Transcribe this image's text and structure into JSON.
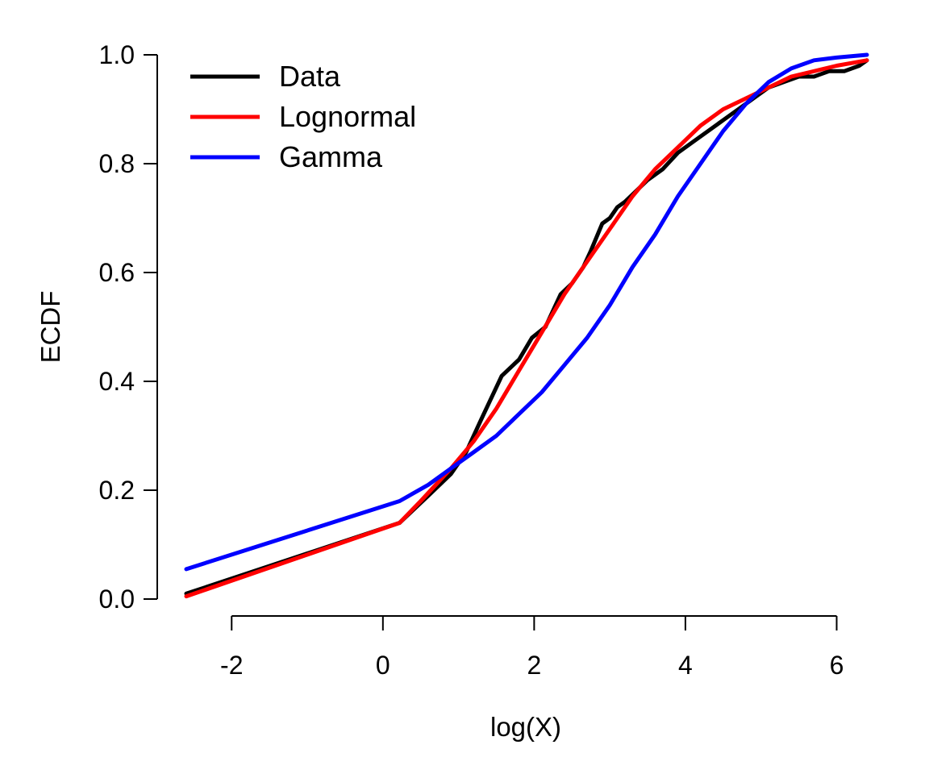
{
  "chart_data": {
    "type": "line",
    "title": "",
    "xlabel": "log(X)",
    "ylabel": "ECDF",
    "xlim": [
      -2.6,
      6.4
    ],
    "ylim": [
      0.0,
      1.0
    ],
    "x_ticks": [
      -2,
      0,
      2,
      4,
      6
    ],
    "x_tick_labels": [
      "-2",
      "0",
      "2",
      "4",
      "6"
    ],
    "y_ticks": [
      0.0,
      0.2,
      0.4,
      0.6,
      0.8,
      1.0
    ],
    "y_tick_labels": [
      "0.0",
      "0.2",
      "0.4",
      "0.6",
      "0.8",
      "1.0"
    ],
    "grid": false,
    "legend_position": "top-left",
    "series": [
      {
        "name": "Data",
        "color": "#000000",
        "x": [
          -2.6,
          0.22,
          0.6,
          0.9,
          1.1,
          1.3,
          1.57,
          1.8,
          1.97,
          2.15,
          2.35,
          2.5,
          2.65,
          2.75,
          2.9,
          3.0,
          3.1,
          3.2,
          3.35,
          3.5,
          3.7,
          3.9,
          4.1,
          4.3,
          4.5,
          4.7,
          4.9,
          5.1,
          5.3,
          5.5,
          5.7,
          5.9,
          6.1,
          6.3,
          6.4
        ],
        "y": [
          0.01,
          0.14,
          0.19,
          0.23,
          0.27,
          0.33,
          0.41,
          0.44,
          0.48,
          0.5,
          0.56,
          0.58,
          0.61,
          0.64,
          0.69,
          0.7,
          0.72,
          0.73,
          0.75,
          0.77,
          0.79,
          0.82,
          0.84,
          0.86,
          0.88,
          0.9,
          0.92,
          0.94,
          0.95,
          0.96,
          0.96,
          0.97,
          0.97,
          0.98,
          0.99
        ]
      },
      {
        "name": "Lognormal",
        "color": "#ff0000",
        "x": [
          -2.6,
          0.22,
          0.5,
          0.9,
          1.2,
          1.5,
          1.8,
          2.1,
          2.4,
          2.7,
          3.0,
          3.3,
          3.6,
          3.9,
          4.2,
          4.5,
          4.8,
          5.1,
          5.4,
          5.7,
          6.0,
          6.4
        ],
        "y": [
          0.005,
          0.14,
          0.18,
          0.24,
          0.29,
          0.35,
          0.42,
          0.49,
          0.56,
          0.62,
          0.68,
          0.74,
          0.79,
          0.83,
          0.87,
          0.9,
          0.92,
          0.94,
          0.96,
          0.97,
          0.98,
          0.99
        ]
      },
      {
        "name": "Gamma",
        "color": "#0000ff",
        "x": [
          -2.6,
          0.22,
          0.6,
          0.9,
          1.2,
          1.5,
          1.8,
          2.1,
          2.4,
          2.7,
          3.0,
          3.3,
          3.6,
          3.9,
          4.2,
          4.5,
          4.8,
          5.1,
          5.4,
          5.7,
          6.0,
          6.4
        ],
        "y": [
          0.055,
          0.18,
          0.21,
          0.24,
          0.27,
          0.3,
          0.34,
          0.38,
          0.43,
          0.48,
          0.54,
          0.61,
          0.67,
          0.74,
          0.8,
          0.86,
          0.91,
          0.95,
          0.975,
          0.99,
          0.995,
          1.0
        ]
      }
    ]
  }
}
